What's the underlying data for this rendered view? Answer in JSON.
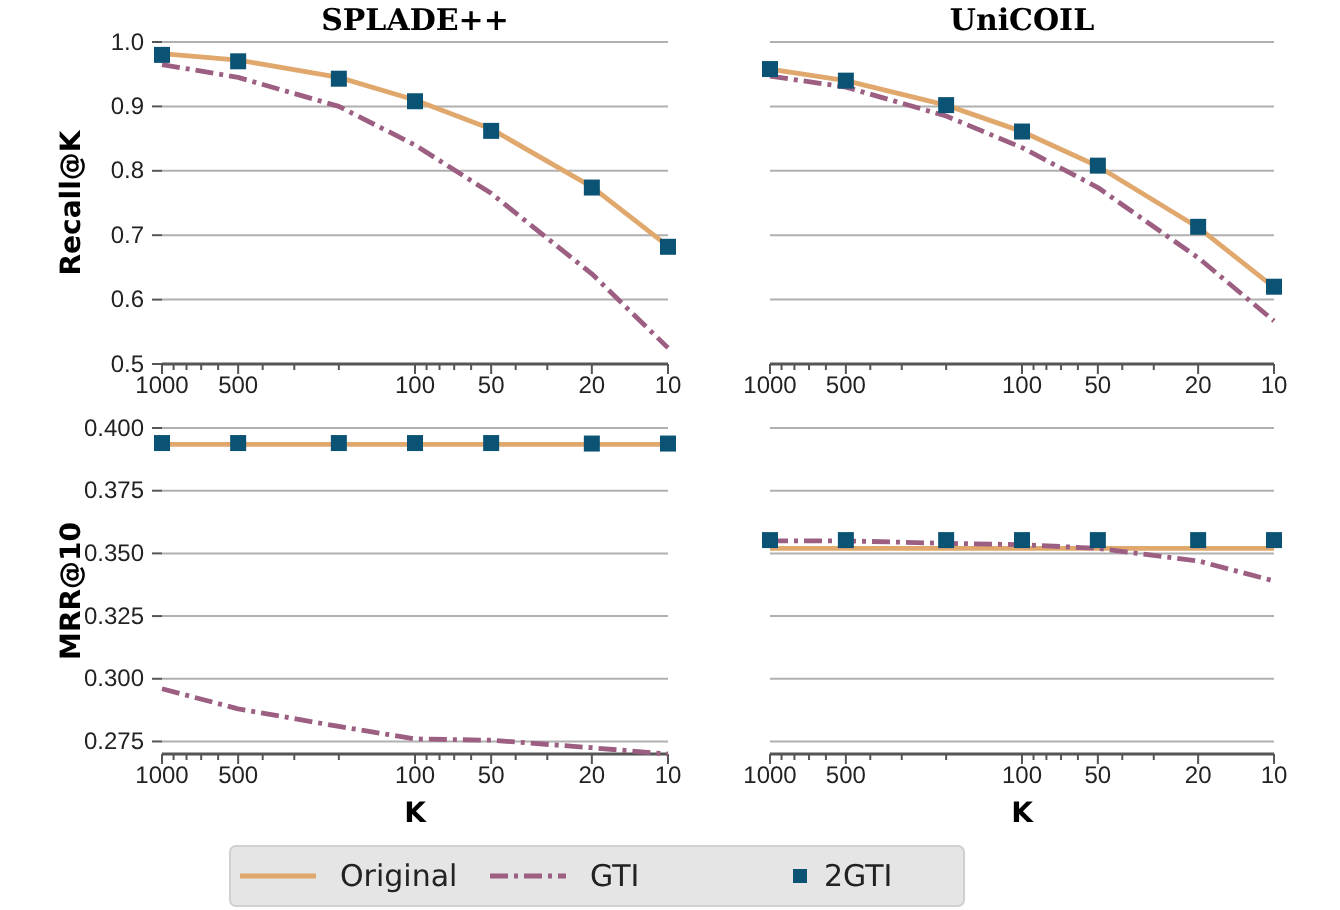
{
  "chart_data": [
    {
      "type": "line",
      "title": "SPLADE++",
      "ylabel": "Recall@K",
      "x": [
        1000,
        500,
        200,
        100,
        50,
        20,
        10
      ],
      "xlim": [
        1000,
        10
      ],
      "log": "x",
      "xticks": [
        1000,
        {
          "value": 900,
          "label": null
        },
        {
          "value": 800,
          "label": null
        },
        {
          "value": 700,
          "label": null
        },
        {
          "value": 600,
          "label": null
        },
        500,
        {
          "value": 400,
          "label": null
        },
        {
          "value": 300,
          "label": null
        },
        {
          "value": 200,
          "label": null
        },
        100,
        {
          "value": 90,
          "label": null
        },
        {
          "value": 80,
          "label": null
        },
        {
          "value": 70,
          "label": null
        },
        {
          "value": 60,
          "label": null
        },
        50,
        {
          "value": 40,
          "label": null
        },
        {
          "value": 30,
          "label": null
        },
        20,
        10
      ],
      "ylim": [
        0.5,
        1.0
      ],
      "yticks": [
        0.5,
        0.6,
        0.7,
        0.8,
        0.9,
        {
          "value": 1.0,
          "label": "1.0"
        }
      ],
      "grid": "y",
      "legend": "bottom",
      "series": [
        {
          "name": "Original",
          "color": "#e0a86c",
          "line_style": "solid",
          "values": [
            0.982,
            0.972,
            0.945,
            0.91,
            0.865,
            0.775,
            0.683
          ]
        },
        {
          "name": "GTI",
          "color": "#9c5f82",
          "line_style": "dashed",
          "values": [
            0.965,
            0.945,
            0.9,
            0.84,
            0.765,
            0.64,
            0.525
          ]
        },
        {
          "name": "2GTI",
          "type": "scatter",
          "color": "#0b5374",
          "marker": "square",
          "values": [
            0.98,
            0.97,
            0.943,
            0.908,
            0.862,
            0.774,
            0.682
          ]
        }
      ]
    },
    {
      "type": "line",
      "title": "UniCOIL",
      "x": [
        1000,
        500,
        200,
        100,
        50,
        20,
        10
      ],
      "xlim": [
        1000,
        10
      ],
      "log": "x",
      "tick_labels": "x",
      "xticks": [
        1000,
        {
          "value": 900,
          "label": null
        },
        {
          "value": 800,
          "label": null
        },
        {
          "value": 700,
          "label": null
        },
        {
          "value": 600,
          "label": null
        },
        500,
        {
          "value": 400,
          "label": null
        },
        {
          "value": 300,
          "label": null
        },
        {
          "value": 200,
          "label": null
        },
        100,
        {
          "value": 90,
          "label": null
        },
        {
          "value": 80,
          "label": null
        },
        {
          "value": 70,
          "label": null
        },
        {
          "value": 60,
          "label": null
        },
        50,
        {
          "value": 40,
          "label": null
        },
        {
          "value": 30,
          "label": null
        },
        20,
        10
      ],
      "ylim": [
        0.5,
        1.0
      ],
      "yticks": [
        0.5,
        0.6,
        0.7,
        0.8,
        0.9,
        1.0
      ],
      "grid": "y",
      "series": [
        {
          "color": "#e0a86c",
          "line_style": "solid",
          "values": [
            0.958,
            0.94,
            0.902,
            0.861,
            0.807,
            0.712,
            0.619
          ]
        },
        {
          "color": "#9c5f82",
          "line_style": "dashed",
          "values": [
            0.947,
            0.93,
            0.885,
            0.836,
            0.774,
            0.665,
            0.567
          ]
        },
        {
          "type": "scatter",
          "color": "#0b5374",
          "marker": "square",
          "values": [
            0.958,
            0.94,
            0.902,
            0.861,
            0.808,
            0.713,
            0.62
          ]
        }
      ]
    },
    {
      "type": "line",
      "ylabel": "MRR@10",
      "xlabel": "K",
      "x": [
        1000,
        500,
        200,
        100,
        50,
        20,
        10
      ],
      "xlim": [
        1000,
        10
      ],
      "log": "x",
      "xticks": [
        1000,
        {
          "value": 900,
          "label": null
        },
        {
          "value": 800,
          "label": null
        },
        {
          "value": 700,
          "label": null
        },
        {
          "value": 600,
          "label": null
        },
        500,
        {
          "value": 400,
          "label": null
        },
        {
          "value": 300,
          "label": null
        },
        {
          "value": 200,
          "label": null
        },
        100,
        {
          "value": 90,
          "label": null
        },
        {
          "value": 80,
          "label": null
        },
        {
          "value": 70,
          "label": null
        },
        {
          "value": 60,
          "label": null
        },
        50,
        {
          "value": 40,
          "label": null
        },
        {
          "value": 30,
          "label": null
        },
        20,
        10
      ],
      "ylim": [
        0.27,
        0.4
      ],
      "yticks": [
        0.275,
        {
          "value": 0.3,
          "label": "0.300"
        },
        0.325,
        {
          "value": 0.35,
          "label": "0.350"
        },
        0.375,
        {
          "value": 0.4,
          "label": "0.400"
        }
      ],
      "grid": "y",
      "series": [
        {
          "color": "#e0a86c",
          "line_style": "solid",
          "values": [
            0.3935,
            0.3935,
            0.3935,
            0.3935,
            0.3935,
            0.3935,
            0.3935
          ]
        },
        {
          "color": "#9c5f82",
          "line_style": "dashed",
          "values": [
            0.296,
            0.288,
            0.281,
            0.276,
            0.2755,
            0.2725,
            0.27
          ]
        },
        {
          "type": "scatter",
          "color": "#0b5374",
          "marker": "square",
          "values": [
            0.394,
            0.394,
            0.394,
            0.394,
            0.394,
            0.3938,
            0.3938
          ]
        }
      ]
    },
    {
      "type": "line",
      "xlabel": "K",
      "x": [
        1000,
        500,
        200,
        100,
        50,
        20,
        10
      ],
      "xlim": [
        1000,
        10
      ],
      "log": "x",
      "tick_labels": "x",
      "xticks": [
        1000,
        {
          "value": 900,
          "label": null
        },
        {
          "value": 800,
          "label": null
        },
        {
          "value": 700,
          "label": null
        },
        {
          "value": 600,
          "label": null
        },
        500,
        {
          "value": 400,
          "label": null
        },
        {
          "value": 300,
          "label": null
        },
        {
          "value": 200,
          "label": null
        },
        100,
        {
          "value": 90,
          "label": null
        },
        {
          "value": 80,
          "label": null
        },
        {
          "value": 70,
          "label": null
        },
        {
          "value": 60,
          "label": null
        },
        50,
        {
          "value": 40,
          "label": null
        },
        {
          "value": 30,
          "label": null
        },
        20,
        10
      ],
      "ylim": [
        0.27,
        0.4
      ],
      "yticks": [
        0.275,
        0.3,
        0.325,
        0.35,
        0.375,
        0.4
      ],
      "grid": "y",
      "series": [
        {
          "color": "#e0a86c",
          "line_style": "solid",
          "values": [
            0.352,
            0.352,
            0.352,
            0.352,
            0.352,
            0.352,
            0.352
          ]
        },
        {
          "color": "#9c5f82",
          "line_style": "dashed",
          "values": [
            0.355,
            0.355,
            0.354,
            0.3535,
            0.352,
            0.347,
            0.339
          ]
        },
        {
          "type": "scatter",
          "color": "#0b5374",
          "marker": "square",
          "values": [
            0.3553,
            0.3553,
            0.3553,
            0.3553,
            0.3553,
            0.3553,
            0.3553
          ]
        }
      ]
    }
  ]
}
